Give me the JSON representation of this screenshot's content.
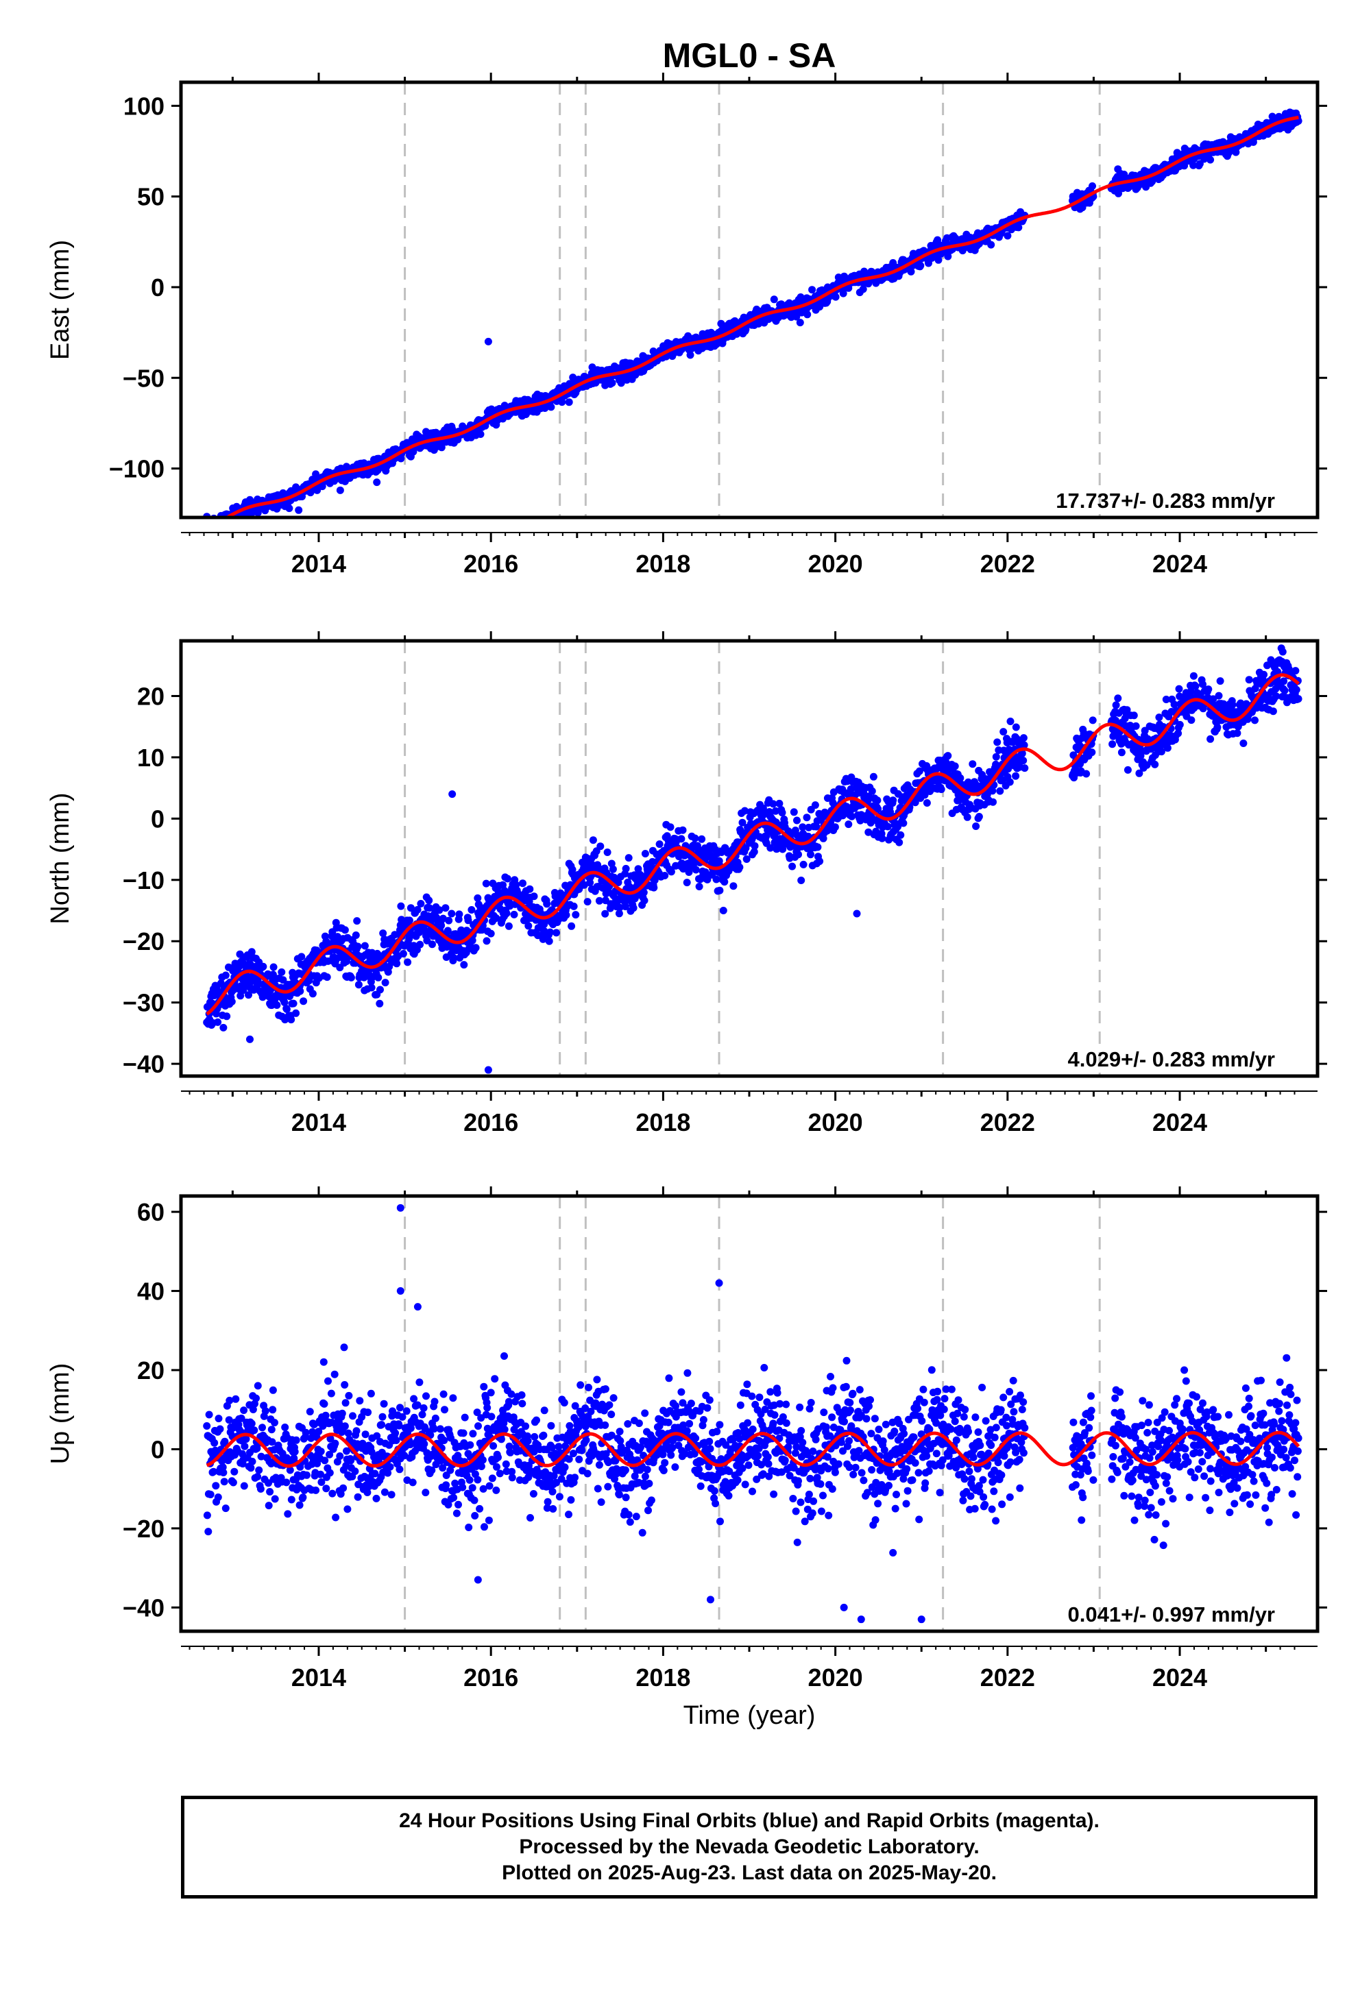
{
  "chart_data": {
    "title": "MGL0 - SA",
    "type": "scatter",
    "xlabel": "Time (year)",
    "xlim": [
      2012.4,
      2025.6
    ],
    "xticks": [
      2014,
      2016,
      2018,
      2020,
      2022,
      2024
    ],
    "xtick_labels": [
      "2014",
      "2016",
      "2018",
      "2020",
      "2022",
      "2024"
    ],
    "equipment_change_years": [
      2015.0,
      2016.8,
      2017.1,
      2018.65,
      2021.25,
      2023.07
    ],
    "data_gaps": [
      [
        2022.2,
        2022.75
      ],
      [
        2023.0,
        2023.2
      ]
    ],
    "date_range": [
      2012.7,
      2025.38
    ],
    "colors": {
      "data": "#0000ff",
      "model": "#ff0000",
      "change_lines": "#c0c0c0",
      "axes": "#000000"
    },
    "grid": false,
    "panels": [
      {
        "component": "East",
        "ylabel": "East (mm)",
        "ylim": [
          -127,
          113
        ],
        "yticks": [
          -100,
          -50,
          0,
          50,
          100
        ],
        "ytick_labels": [
          "−100",
          "−50",
          "0",
          "50",
          "100"
        ],
        "rate_label": "17.737+/- 0.283 mm/yr",
        "trend_mm_per_yr": 17.737,
        "intercept_at_2020": -2,
        "noise_mm": 2.3,
        "annual_amplitude_mm": 1.5,
        "outliers": [
          {
            "x": 2015.97,
            "y": -30
          },
          {
            "x": 2014.25,
            "y": -112
          }
        ]
      },
      {
        "component": "North",
        "ylabel": "North (mm)",
        "ylim": [
          -42,
          29
        ],
        "yticks": [
          -40,
          -30,
          -20,
          -10,
          0,
          10,
          20
        ],
        "ytick_labels": [
          "−40",
          "−30",
          "−20",
          "−10",
          "0",
          "10",
          "20"
        ],
        "rate_label": "4.029+/- 0.283 mm/yr",
        "trend_mm_per_yr": 4.029,
        "intercept_at_2020": 0,
        "noise_mm": 2.0,
        "annual_amplitude_mm": 2.6,
        "outliers": [
          {
            "x": 2015.97,
            "y": -41
          },
          {
            "x": 2013.2,
            "y": -36
          },
          {
            "x": 2018.7,
            "y": -15
          },
          {
            "x": 2020.25,
            "y": -15.5
          },
          {
            "x": 2015.55,
            "y": 4
          }
        ]
      },
      {
        "component": "Up",
        "ylabel": "Up (mm)",
        "ylim": [
          -46,
          64
        ],
        "yticks": [
          -40,
          -20,
          0,
          20,
          40,
          60
        ],
        "ytick_labels": [
          "−40",
          "−20",
          "0",
          "20",
          "40",
          "60"
        ],
        "rate_label": "0.041+/- 0.997 mm/yr",
        "trend_mm_per_yr": 0.041,
        "intercept_at_2020": 0,
        "noise_mm": 6.5,
        "annual_amplitude_mm": 4.0,
        "outliers": [
          {
            "x": 2014.95,
            "y": 61
          },
          {
            "x": 2018.65,
            "y": 42
          },
          {
            "x": 2014.95,
            "y": 40
          },
          {
            "x": 2015.15,
            "y": 36
          },
          {
            "x": 2020.3,
            "y": -43
          },
          {
            "x": 2021.0,
            "y": -43
          },
          {
            "x": 2018.55,
            "y": -38
          },
          {
            "x": 2015.85,
            "y": -33
          },
          {
            "x": 2020.1,
            "y": -40
          }
        ]
      }
    ]
  },
  "footer": {
    "line1": "24 Hour Positions Using Final Orbits (blue) and Rapid Orbits (magenta).",
    "line2": "Processed by the Nevada Geodetic Laboratory.",
    "line3": "Plotted on 2025-Aug-23. Last data on 2025-May-20."
  }
}
